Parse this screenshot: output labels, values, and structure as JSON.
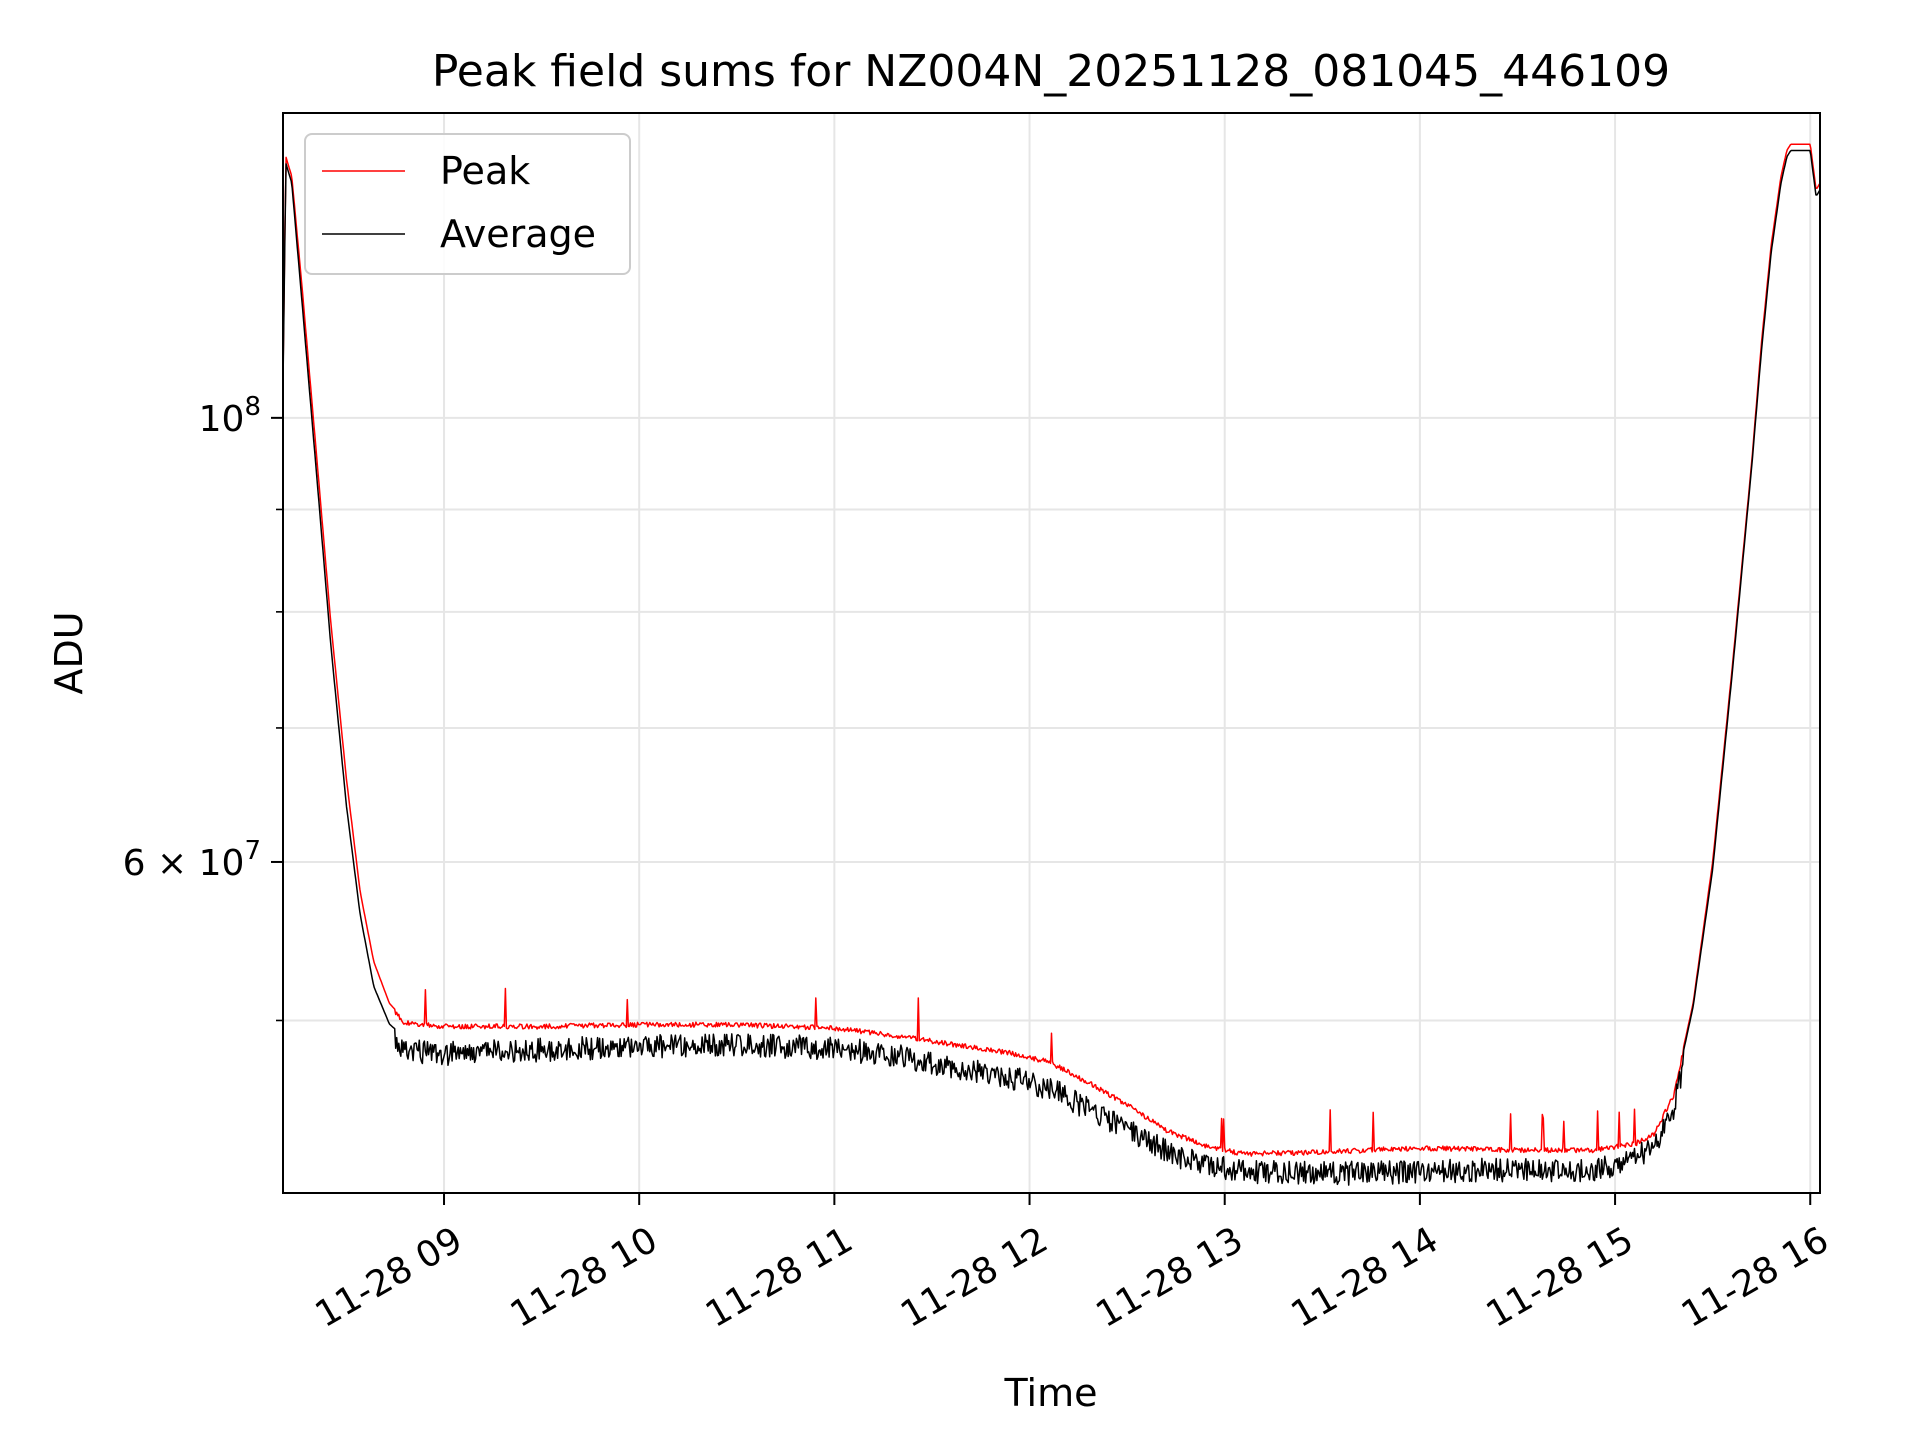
{
  "chart_data": {
    "type": "line",
    "title": "Peak field sums for NZ004N_20251128_081045_446109",
    "xlabel": "Time",
    "ylabel": "ADU",
    "yscale": "log",
    "grid": true,
    "legend_position": "top-left",
    "xlim_hours": [
      8.175,
      16.05
    ],
    "ylim": [
      41000000,
      142000000
    ],
    "x_ticks": [
      {
        "hour": 9,
        "label": "11-28 09"
      },
      {
        "hour": 10,
        "label": "11-28 10"
      },
      {
        "hour": 11,
        "label": "11-28 11"
      },
      {
        "hour": 12,
        "label": "11-28 12"
      },
      {
        "hour": 13,
        "label": "11-28 13"
      },
      {
        "hour": 14,
        "label": "11-28 14"
      },
      {
        "hour": 15,
        "label": "11-28 15"
      },
      {
        "hour": 16,
        "label": "11-28 16"
      }
    ],
    "y_major_ticks": [
      {
        "value": 100000000,
        "base": "10",
        "exp": "8"
      },
      {
        "value": 60000000,
        "mant": "6",
        "base": "10",
        "exp": "7"
      }
    ],
    "y_minor_ticks": [
      50000000,
      70000000,
      80000000,
      90000000
    ],
    "series": [
      {
        "name": "Peak",
        "color": "#ff0000",
        "x_hours": [
          8.175,
          8.19,
          8.22,
          8.27,
          8.35,
          8.42,
          8.5,
          8.57,
          8.64,
          8.72,
          8.8,
          9.0,
          9.5,
          10.0,
          10.5,
          11.0,
          11.3,
          11.6,
          11.9,
          12.1,
          12.3,
          12.5,
          12.7,
          12.9,
          13.1,
          13.5,
          14.0,
          14.5,
          14.9,
          15.1,
          15.2,
          15.3,
          15.4,
          15.5,
          15.6,
          15.7,
          15.75,
          15.8,
          15.85,
          15.88,
          15.9,
          15.93,
          16.0,
          16.03,
          16.05
        ],
        "values": [
          105000000,
          135000000,
          132000000,
          117000000,
          95000000,
          79000000,
          66000000,
          58000000,
          53500000,
          51000000,
          50000000,
          49800000,
          49800000,
          49900000,
          49900000,
          49700000,
          49300000,
          48800000,
          48300000,
          47800000,
          46700000,
          45500000,
          44200000,
          43400000,
          43000000,
          43100000,
          43300000,
          43200000,
          43200000,
          43500000,
          44000000,
          46000000,
          51000000,
          60000000,
          75000000,
          95000000,
          109000000,
          122000000,
          132000000,
          136000000,
          137000000,
          137000000,
          137000000,
          130000000,
          131000000
        ]
      },
      {
        "name": "Average",
        "color": "#000000",
        "x_hours": [
          8.175,
          8.19,
          8.22,
          8.27,
          8.35,
          8.42,
          8.5,
          8.57,
          8.64,
          8.72,
          8.8,
          9.0,
          9.5,
          10.0,
          10.5,
          11.0,
          11.3,
          11.6,
          11.9,
          12.1,
          12.3,
          12.5,
          12.7,
          12.9,
          13.1,
          13.5,
          14.0,
          14.5,
          14.9,
          15.1,
          15.2,
          15.3,
          15.4,
          15.5,
          15.6,
          15.7,
          15.75,
          15.8,
          15.85,
          15.88,
          15.9,
          15.93,
          16.0,
          16.03,
          16.05
        ],
        "values": [
          104000000,
          134000000,
          131000000,
          115000000,
          93000000,
          77000000,
          64000000,
          56500000,
          52000000,
          49800000,
          49000000,
          48800000,
          49000000,
          49200000,
          49300000,
          49100000,
          48700000,
          48100000,
          47500000,
          46900000,
          45800000,
          44700000,
          43600000,
          42900000,
          42600000,
          42500000,
          42600000,
          42700000,
          42700000,
          43200000,
          43900000,
          45800000,
          50800000,
          59500000,
          74500000,
          94500000,
          108000000,
          121000000,
          131000000,
          135000000,
          136000000,
          136000000,
          136000000,
          129000000,
          130000000
        ]
      }
    ]
  }
}
